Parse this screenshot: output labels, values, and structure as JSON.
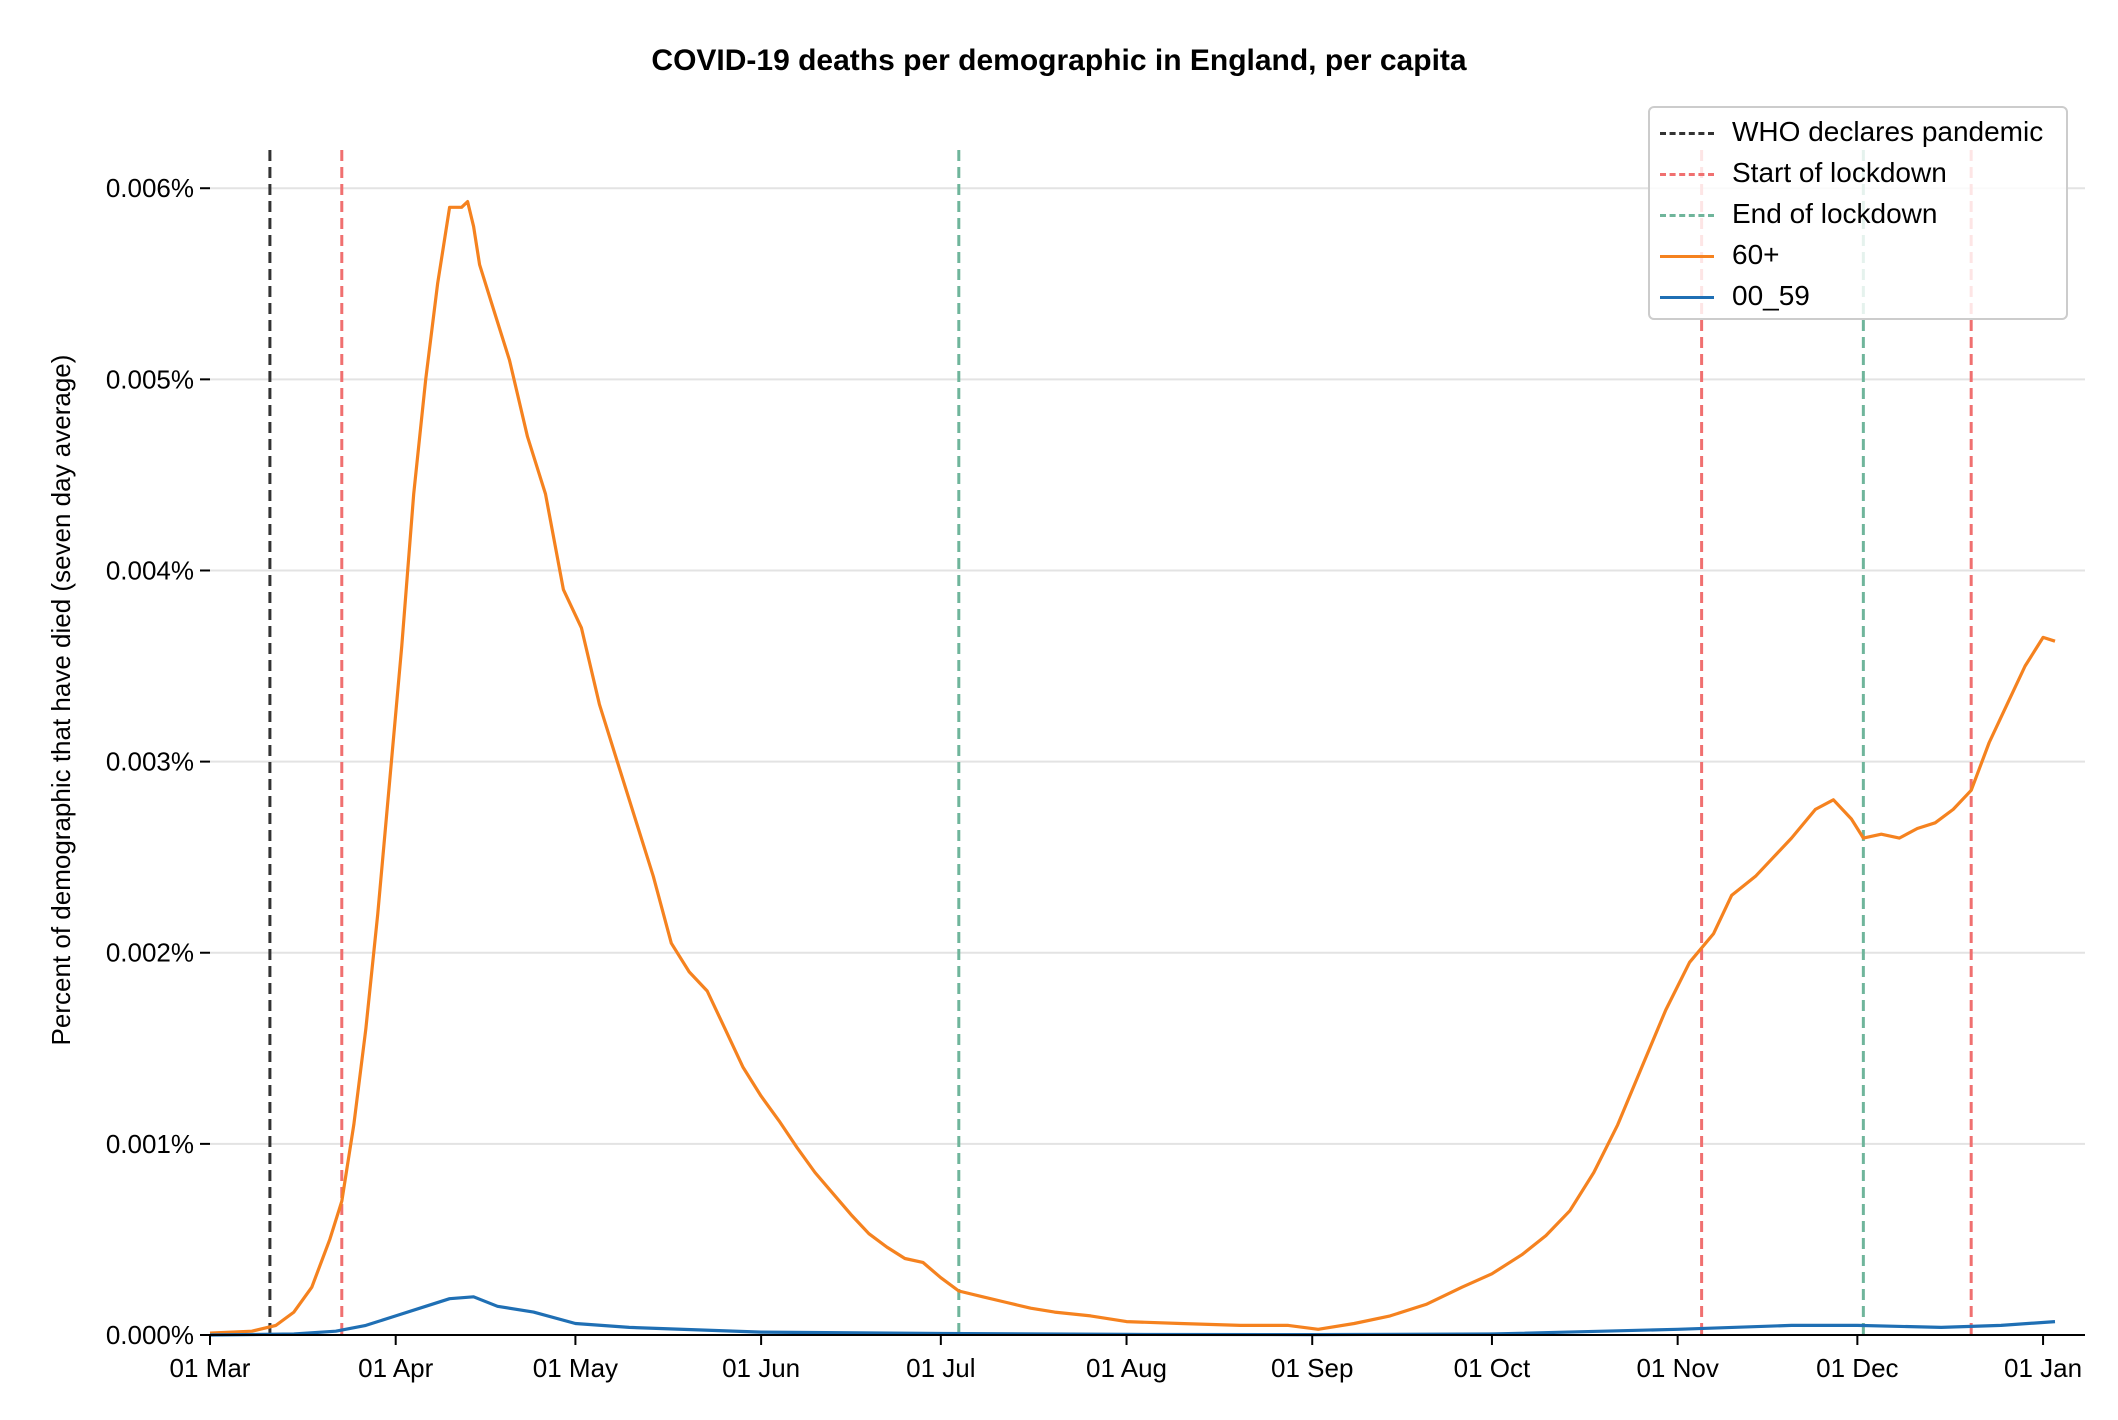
{
  "title": "COVID-19 deaths per demographic in England, per capita",
  "chart_data": {
    "type": "line",
    "title": "COVID-19 deaths per demographic in England, per capita",
    "xlabel": "",
    "ylabel": "Percent of demographic that have died (seven day average)",
    "x_tick_labels": [
      "01 Mar",
      "01 Apr",
      "01 May",
      "01 Jun",
      "01 Jul",
      "01 Aug",
      "01 Sep",
      "01 Oct",
      "01 Nov",
      "01 Dec",
      "01 Jan"
    ],
    "y_tick_labels": [
      "0.000%",
      "0.001%",
      "0.002%",
      "0.003%",
      "0.004%",
      "0.005%",
      "0.006%"
    ],
    "xlim": [
      "2020-03-01",
      "2021-01-08"
    ],
    "ylim": [
      0,
      0.0062
    ],
    "grid": "horizontal",
    "legend_position": "top-right",
    "vlines": [
      {
        "label": "WHO declares pandemic",
        "date": "2020-03-11",
        "color": "#333333",
        "style": "dashed"
      },
      {
        "label": "Start of lockdown",
        "date": "2020-03-23",
        "color": "#f07070",
        "style": "dashed"
      },
      {
        "label": "End of lockdown",
        "date": "2020-07-04",
        "color": "#6fb59b",
        "style": "dashed"
      },
      {
        "label": "",
        "date": "2020-11-05",
        "color": "#f07070",
        "style": "dashed"
      },
      {
        "label": "",
        "date": "2020-12-02",
        "color": "#6fb59b",
        "style": "dashed"
      },
      {
        "label": "",
        "date": "2020-12-20",
        "color": "#f07070",
        "style": "dashed"
      }
    ],
    "series": [
      {
        "name": "60+",
        "color": "#f5821f",
        "points": [
          [
            "2020-03-01",
            1e-05
          ],
          [
            "2020-03-08",
            2e-05
          ],
          [
            "2020-03-12",
            5e-05
          ],
          [
            "2020-03-15",
            0.00012
          ],
          [
            "2020-03-18",
            0.00025
          ],
          [
            "2020-03-21",
            0.0005
          ],
          [
            "2020-03-23",
            0.0007
          ],
          [
            "2020-03-25",
            0.0011
          ],
          [
            "2020-03-27",
            0.0016
          ],
          [
            "2020-03-29",
            0.0022
          ],
          [
            "2020-03-31",
            0.0029
          ],
          [
            "2020-04-02",
            0.0036
          ],
          [
            "2020-04-04",
            0.0044
          ],
          [
            "2020-04-06",
            0.005
          ],
          [
            "2020-04-08",
            0.0055
          ],
          [
            "2020-04-10",
            0.0059
          ],
          [
            "2020-04-12",
            0.0059
          ],
          [
            "2020-04-13",
            0.00593
          ],
          [
            "2020-04-14",
            0.0058
          ],
          [
            "2020-04-15",
            0.0056
          ],
          [
            "2020-04-17",
            0.0054
          ],
          [
            "2020-04-20",
            0.0051
          ],
          [
            "2020-04-23",
            0.0047
          ],
          [
            "2020-04-26",
            0.0044
          ],
          [
            "2020-04-29",
            0.0039
          ],
          [
            "2020-05-02",
            0.0037
          ],
          [
            "2020-05-05",
            0.0033
          ],
          [
            "2020-05-08",
            0.003
          ],
          [
            "2020-05-11",
            0.0027
          ],
          [
            "2020-05-14",
            0.0024
          ],
          [
            "2020-05-17",
            0.00205
          ],
          [
            "2020-05-20",
            0.0019
          ],
          [
            "2020-05-23",
            0.0018
          ],
          [
            "2020-05-26",
            0.0016
          ],
          [
            "2020-05-29",
            0.0014
          ],
          [
            "2020-06-01",
            0.00125
          ],
          [
            "2020-06-04",
            0.00112
          ],
          [
            "2020-06-07",
            0.00098
          ],
          [
            "2020-06-10",
            0.00085
          ],
          [
            "2020-06-13",
            0.00074
          ],
          [
            "2020-06-16",
            0.00063
          ],
          [
            "2020-06-19",
            0.00053
          ],
          [
            "2020-06-22",
            0.00046
          ],
          [
            "2020-06-25",
            0.0004
          ],
          [
            "2020-06-28",
            0.00038
          ],
          [
            "2020-07-01",
            0.0003
          ],
          [
            "2020-07-04",
            0.00023
          ],
          [
            "2020-07-08",
            0.0002
          ],
          [
            "2020-07-12",
            0.00017
          ],
          [
            "2020-07-16",
            0.00014
          ],
          [
            "2020-07-20",
            0.00012
          ],
          [
            "2020-07-26",
            0.0001
          ],
          [
            "2020-08-01",
            7e-05
          ],
          [
            "2020-08-10",
            6e-05
          ],
          [
            "2020-08-20",
            5e-05
          ],
          [
            "2020-08-28",
            5e-05
          ],
          [
            "2020-09-02",
            3e-05
          ],
          [
            "2020-09-08",
            6e-05
          ],
          [
            "2020-09-14",
            0.0001
          ],
          [
            "2020-09-20",
            0.00016
          ],
          [
            "2020-09-26",
            0.00025
          ],
          [
            "2020-10-01",
            0.00032
          ],
          [
            "2020-10-06",
            0.00042
          ],
          [
            "2020-10-10",
            0.00052
          ],
          [
            "2020-10-14",
            0.00065
          ],
          [
            "2020-10-18",
            0.00085
          ],
          [
            "2020-10-22",
            0.0011
          ],
          [
            "2020-10-26",
            0.0014
          ],
          [
            "2020-10-30",
            0.0017
          ],
          [
            "2020-11-03",
            0.00195
          ],
          [
            "2020-11-07",
            0.0021
          ],
          [
            "2020-11-10",
            0.0023
          ],
          [
            "2020-11-14",
            0.0024
          ],
          [
            "2020-11-17",
            0.0025
          ],
          [
            "2020-11-20",
            0.0026
          ],
          [
            "2020-11-24",
            0.00275
          ],
          [
            "2020-11-27",
            0.0028
          ],
          [
            "2020-11-30",
            0.0027
          ],
          [
            "2020-12-02",
            0.0026
          ],
          [
            "2020-12-05",
            0.00262
          ],
          [
            "2020-12-08",
            0.0026
          ],
          [
            "2020-12-11",
            0.00265
          ],
          [
            "2020-12-14",
            0.00268
          ],
          [
            "2020-12-17",
            0.00275
          ],
          [
            "2020-12-20",
            0.00285
          ],
          [
            "2020-12-23",
            0.0031
          ],
          [
            "2020-12-26",
            0.0033
          ],
          [
            "2020-12-29",
            0.0035
          ],
          [
            "2021-01-01",
            0.00365
          ],
          [
            "2021-01-03",
            0.00363
          ]
        ]
      },
      {
        "name": "00_59",
        "color": "#1f6fb4",
        "points": [
          [
            "2020-03-01",
            0.0
          ],
          [
            "2020-03-15",
            5e-06
          ],
          [
            "2020-03-22",
            2e-05
          ],
          [
            "2020-03-27",
            5e-05
          ],
          [
            "2020-04-01",
            0.0001
          ],
          [
            "2020-04-06",
            0.00015
          ],
          [
            "2020-04-10",
            0.00019
          ],
          [
            "2020-04-14",
            0.0002
          ],
          [
            "2020-04-18",
            0.00015
          ],
          [
            "2020-04-24",
            0.00012
          ],
          [
            "2020-05-01",
            6e-05
          ],
          [
            "2020-05-10",
            4e-05
          ],
          [
            "2020-06-01",
            1.5e-05
          ],
          [
            "2020-07-01",
            8e-06
          ],
          [
            "2020-08-01",
            3e-06
          ],
          [
            "2020-09-01",
            2e-06
          ],
          [
            "2020-10-01",
            5e-06
          ],
          [
            "2020-11-01",
            3e-05
          ],
          [
            "2020-11-20",
            5e-05
          ],
          [
            "2020-12-01",
            5e-05
          ],
          [
            "2020-12-15",
            4e-05
          ],
          [
            "2020-12-25",
            5e-05
          ],
          [
            "2021-01-03",
            7e-05
          ]
        ]
      }
    ]
  },
  "legend": [
    {
      "label": "WHO declares pandemic",
      "color": "#333333",
      "style": "dashed"
    },
    {
      "label": "Start of lockdown",
      "color": "#f07070",
      "style": "dashed"
    },
    {
      "label": "End of lockdown",
      "color": "#6fb59b",
      "style": "dashed"
    },
    {
      "label": "60+",
      "color": "#f5821f",
      "style": "solid"
    },
    {
      "label": "00_59",
      "color": "#1f6fb4",
      "style": "solid"
    }
  ]
}
